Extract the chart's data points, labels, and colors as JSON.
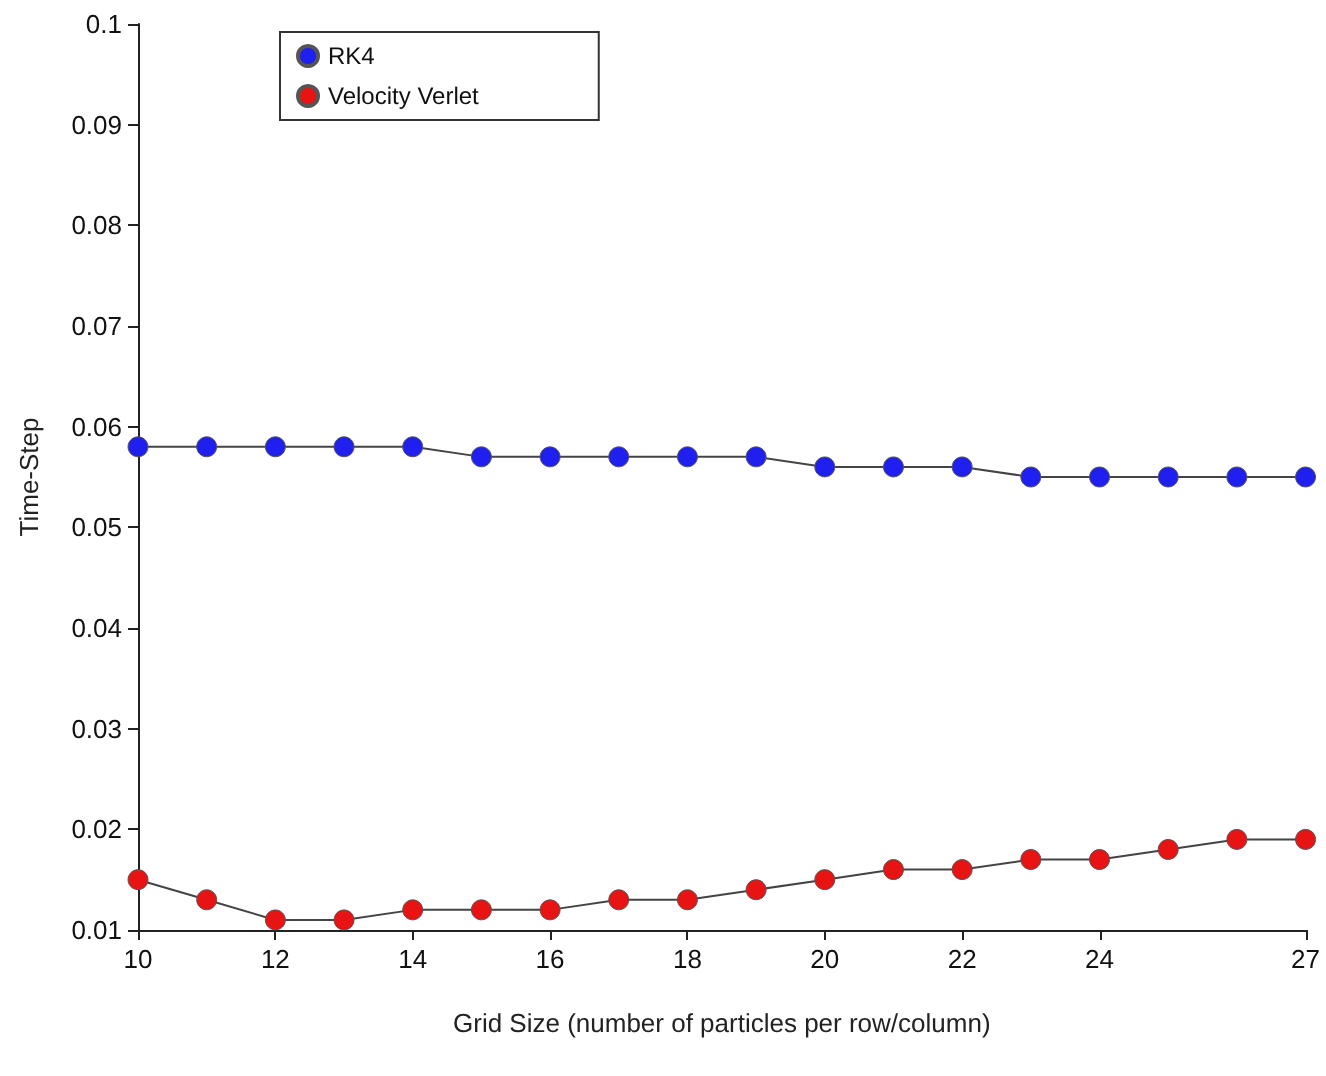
{
  "chart_data": {
    "type": "line",
    "xlabel": "Grid Size (number of particles per row/column)",
    "ylabel": "Time-Step",
    "x": [
      10,
      11,
      12,
      13,
      14,
      15,
      16,
      17,
      18,
      19,
      20,
      21,
      22,
      23,
      24,
      25,
      26,
      27
    ],
    "series": [
      {
        "name": "RK4",
        "color": "#1f1fef",
        "values": [
          0.058,
          0.058,
          0.058,
          0.058,
          0.058,
          0.057,
          0.057,
          0.057,
          0.057,
          0.057,
          0.056,
          0.056,
          0.056,
          0.055,
          0.055,
          0.055,
          0.055,
          0.055
        ]
      },
      {
        "name": "Velocity Verlet",
        "color": "#e81414",
        "values": [
          0.015,
          0.013,
          0.011,
          0.011,
          0.012,
          0.012,
          0.012,
          0.013,
          0.013,
          0.014,
          0.015,
          0.016,
          0.016,
          0.017,
          0.017,
          0.018,
          0.019,
          0.019
        ]
      }
    ],
    "xlim": [
      10,
      27
    ],
    "xticks": [
      10,
      12,
      14,
      16,
      18,
      20,
      22,
      24,
      27
    ],
    "ylim": [
      0.01,
      0.1
    ],
    "yticks": [
      0.01,
      0.02,
      0.03,
      0.04,
      0.05,
      0.06,
      0.07,
      0.08,
      0.09,
      0.1
    ],
    "grid": false,
    "legend": "top left",
    "marker": "circle",
    "line_style": "solid"
  }
}
